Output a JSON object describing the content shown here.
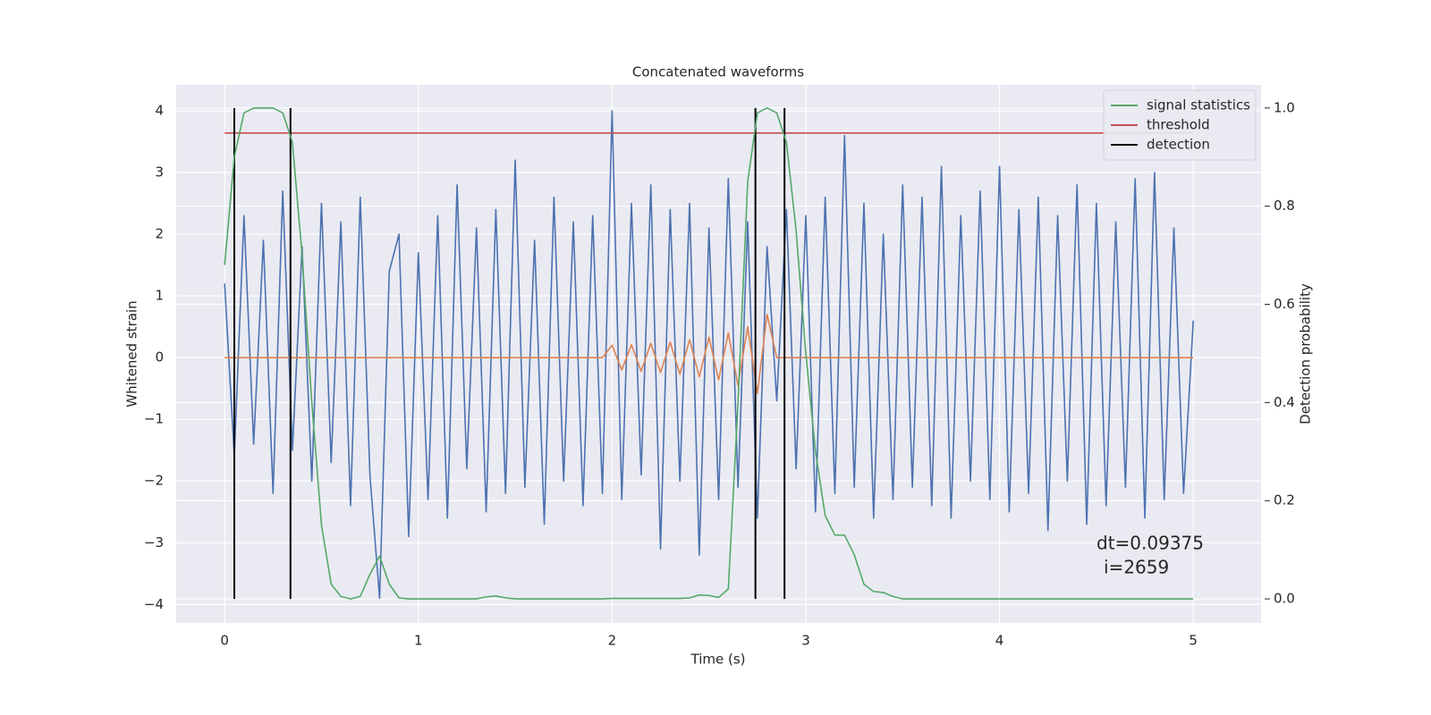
{
  "chart_data": {
    "type": "line",
    "title": "Concatenated waveforms",
    "x_label": "Time (s)",
    "y_label": "Whitened strain",
    "y2_label": "Detection probability",
    "x": [
      0,
      0.05,
      0.1,
      0.15,
      0.2,
      0.25,
      0.3,
      0.35,
      0.4,
      0.45,
      0.5,
      0.55,
      0.6,
      0.65,
      0.7,
      0.75,
      0.8,
      0.85,
      0.9,
      0.95,
      1,
      1.05,
      1.1,
      1.15,
      1.2,
      1.25,
      1.3,
      1.35,
      1.4,
      1.45,
      1.5,
      1.55,
      1.6,
      1.65,
      1.7,
      1.75,
      1.8,
      1.85,
      1.9,
      1.95,
      2,
      2.05,
      2.1,
      2.15,
      2.2,
      2.25,
      2.3,
      2.35,
      2.4,
      2.45,
      2.5,
      2.55,
      2.6,
      2.65,
      2.7,
      2.75,
      2.8,
      2.85,
      2.9,
      2.95,
      3,
      3.05,
      3.1,
      3.15,
      3.2,
      3.25,
      3.3,
      3.35,
      3.4,
      3.45,
      3.5,
      3.55,
      3.6,
      3.65,
      3.7,
      3.75,
      3.8,
      3.85,
      3.9,
      3.95,
      4,
      4.05,
      4.1,
      4.15,
      4.2,
      4.25,
      4.3,
      4.35,
      4.4,
      4.45,
      4.5,
      4.55,
      4.6,
      4.65,
      4.7,
      4.75,
      4.8,
      4.85,
      4.9,
      4.95,
      5
    ],
    "series": [
      {
        "color": "#4c72b0",
        "values": [
          1.2,
          -1.6,
          2.3,
          -1.4,
          1.9,
          -2.2,
          2.7,
          -1.5,
          1.8,
          -2.0,
          2.5,
          -1.7,
          2.2,
          -2.4,
          2.6,
          -1.9,
          -3.9,
          1.4,
          2.0,
          -2.9,
          1.7,
          -2.3,
          2.3,
          -2.6,
          2.8,
          -1.8,
          2.1,
          -2.5,
          2.4,
          -2.2,
          3.2,
          -2.1,
          1.9,
          -2.7,
          2.6,
          -2.0,
          2.2,
          -2.4,
          2.3,
          -2.2,
          4.0,
          -2.3,
          2.5,
          -1.9,
          2.8,
          -3.1,
          2.4,
          -2.0,
          2.5,
          -3.2,
          2.1,
          -2.3,
          2.9,
          -2.1,
          2.2,
          -2.6,
          1.8,
          -0.7,
          2.4,
          -1.8,
          2.3,
          -2.5,
          2.6,
          -2.2,
          3.6,
          -2.1,
          2.5,
          -2.6,
          2.0,
          -2.3,
          2.8,
          -2.1,
          2.6,
          -2.4,
          3.1,
          -2.6,
          2.3,
          -2.0,
          2.7,
          -2.3,
          3.1,
          -2.5,
          2.4,
          -2.2,
          2.6,
          -2.8,
          2.3,
          -2.0,
          2.8,
          -2.7,
          2.5,
          -2.4,
          2.2,
          -2.1,
          2.9,
          -2.6,
          3.0,
          -2.3,
          2.1,
          -2.2,
          0.6
        ]
      },
      {
        "color": "#dd8452",
        "values": [
          0,
          0,
          0,
          0,
          0,
          0,
          0,
          0,
          0,
          0,
          0,
          0,
          0,
          0,
          0,
          0,
          0,
          0,
          0,
          0,
          0,
          0,
          0,
          0,
          0,
          0,
          0,
          0,
          0,
          0,
          0,
          0,
          0,
          0,
          0,
          0,
          0,
          0,
          0,
          0,
          0.2,
          -0.2,
          0.21,
          -0.22,
          0.23,
          -0.24,
          0.25,
          -0.27,
          0.29,
          -0.31,
          0.33,
          -0.36,
          0.4,
          -0.45,
          0.5,
          -0.58,
          0.7,
          0,
          0,
          0,
          0,
          0,
          0,
          0,
          0,
          0,
          0,
          0,
          0,
          0,
          0,
          0,
          0,
          0,
          0,
          0,
          0,
          0,
          0,
          0,
          0,
          0,
          0,
          0,
          0,
          0,
          0,
          0,
          0,
          0,
          0,
          0,
          0,
          0,
          0,
          0,
          0,
          0,
          0,
          0,
          0
        ]
      },
      {
        "name": "signal statistics",
        "color": "#55a868",
        "axis": "y2",
        "values": [
          0.68,
          0.9,
          0.99,
          1.0,
          1.0,
          1.0,
          0.99,
          0.93,
          0.7,
          0.4,
          0.15,
          0.03,
          0.005,
          0,
          0.005,
          0.05,
          0.087,
          0.03,
          0.002,
          0,
          0,
          0,
          0,
          0,
          0,
          0,
          0,
          0.004,
          0.006,
          0.002,
          0,
          0,
          0,
          0,
          0,
          0,
          0,
          0,
          0,
          0,
          0.001,
          0.001,
          0.001,
          0.001,
          0.001,
          0.001,
          0.001,
          0.001,
          0.002,
          0.008,
          0.007,
          0.003,
          0.02,
          0.4,
          0.85,
          0.99,
          1.0,
          0.99,
          0.93,
          0.75,
          0.5,
          0.3,
          0.17,
          0.13,
          0.13,
          0.09,
          0.03,
          0.015,
          0.013,
          0.005,
          0,
          0,
          0,
          0,
          0,
          0,
          0,
          0,
          0,
          0,
          0,
          0,
          0,
          0,
          0,
          0,
          0,
          0,
          0,
          0,
          0,
          0,
          0,
          0,
          0,
          0,
          0,
          0,
          0,
          0,
          0
        ]
      }
    ],
    "threshold": {
      "name": "threshold",
      "color": "#c44e52",
      "value": 0.949,
      "x": [
        0,
        5
      ]
    },
    "detection": {
      "name": "detection",
      "color": "#000000",
      "x": [
        0.05,
        0.34,
        2.74,
        2.89
      ],
      "span": [
        0,
        1
      ]
    },
    "annotations": [
      "dt=0.09375",
      "i=2659"
    ],
    "xlim": [
      -0.25,
      5.35
    ],
    "xticks": [
      0,
      1,
      2,
      3,
      4,
      5
    ],
    "ylim": [
      -4.3,
      4.42
    ],
    "yticks": [
      {
        "value": -4,
        "label": "−4"
      },
      {
        "value": -3,
        "label": "−3"
      },
      {
        "value": -2,
        "label": "−2"
      },
      {
        "value": -1,
        "label": "−1"
      },
      0,
      1,
      2,
      3,
      4
    ],
    "y2lim": [
      -0.049,
      1.047
    ],
    "y2ticks": [
      {
        "value": 0,
        "label": "0.0"
      },
      0.2,
      0.4,
      0.6,
      0.8,
      {
        "value": 1,
        "label": "1.0"
      }
    ],
    "grid": true,
    "legend": "upper right"
  }
}
